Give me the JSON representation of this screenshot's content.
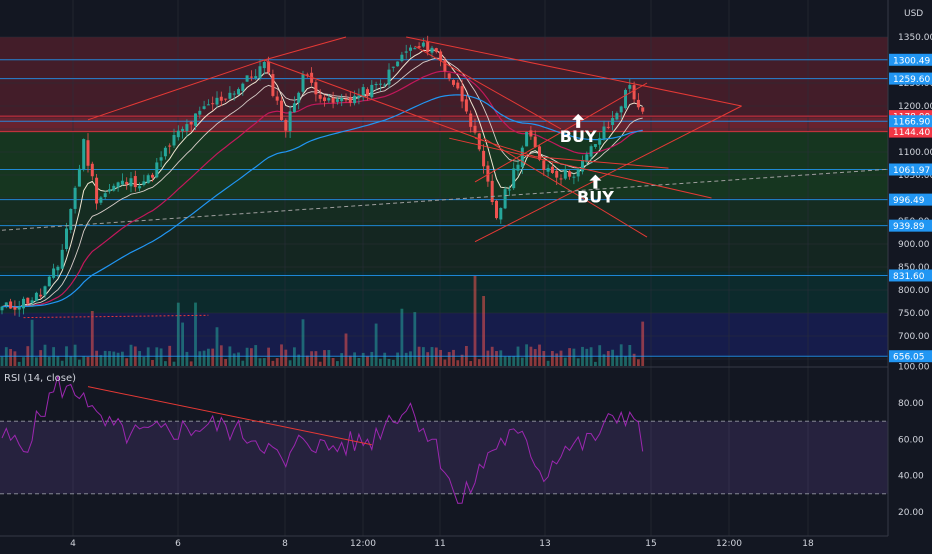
{
  "chart_data": [
    {
      "type": "candlestick",
      "currency": "USD",
      "price_axis_ticks": [
        1350,
        1300,
        1250,
        1200,
        1150,
        1100,
        1050,
        1000,
        950,
        900,
        850,
        800,
        750,
        700,
        650
      ],
      "price_axis_labels": [
        "1350.00",
        "1300.00",
        "1250.00",
        "1200.00",
        "1150.00",
        "1100.00",
        "1050.00",
        "1000.00",
        "950.00",
        "900.00",
        "850.00",
        "800.00",
        "750.00",
        "700.00",
        "650.00"
      ],
      "x_tick_labels": [
        "4",
        "6",
        "8",
        "12:00",
        "11",
        "13",
        "15",
        "12:00",
        "18"
      ],
      "ylim": [
        630,
        1380
      ],
      "level_badges": [
        {
          "value": 1300.49,
          "label": "1300.49",
          "color": "#2196f3"
        },
        {
          "value": 1259.6,
          "label": "1259.60",
          "color": "#2196f3"
        },
        {
          "value": 1178.0,
          "label": "1178.00",
          "color": "#f23645"
        },
        {
          "value": 1144.4,
          "label": "1144.40",
          "color": "#f23645"
        },
        {
          "value": 1166.9,
          "label": "1166.90",
          "color": "#2196f3"
        },
        {
          "value": 1061.97,
          "label": "1061.97",
          "color": "#2196f3"
        },
        {
          "value": 996.49,
          "label": "996.49",
          "color": "#2196f3"
        },
        {
          "value": 939.89,
          "label": "939.89",
          "color": "#2196f3"
        },
        {
          "value": 831.6,
          "label": "831.60",
          "color": "#2196f3"
        },
        {
          "value": 656.05,
          "label": "656.05",
          "color": "#2196f3"
        }
      ],
      "annotations": [
        {
          "text": "BUY",
          "x_index": 134,
          "price": 1122
        },
        {
          "text": "BUY",
          "x_index": 138,
          "price": 990
        }
      ],
      "colors": {
        "up": "#26a69a",
        "down": "#ef5350",
        "ema_fast": "#f0e6d2",
        "ema_slow": "#c2185b",
        "ema_long": "#2196f3",
        "trend": "#e53935"
      }
    },
    {
      "type": "line",
      "title": "RSI (14, close)",
      "ylim": [
        10,
        100
      ],
      "ticks": [
        100,
        80,
        60,
        40,
        20
      ],
      "tick_labels": [
        "100.00",
        "80.00",
        "60.00",
        "40.00",
        "20.00"
      ],
      "bands": [
        30,
        70
      ],
      "color": "#9c27b0"
    }
  ]
}
